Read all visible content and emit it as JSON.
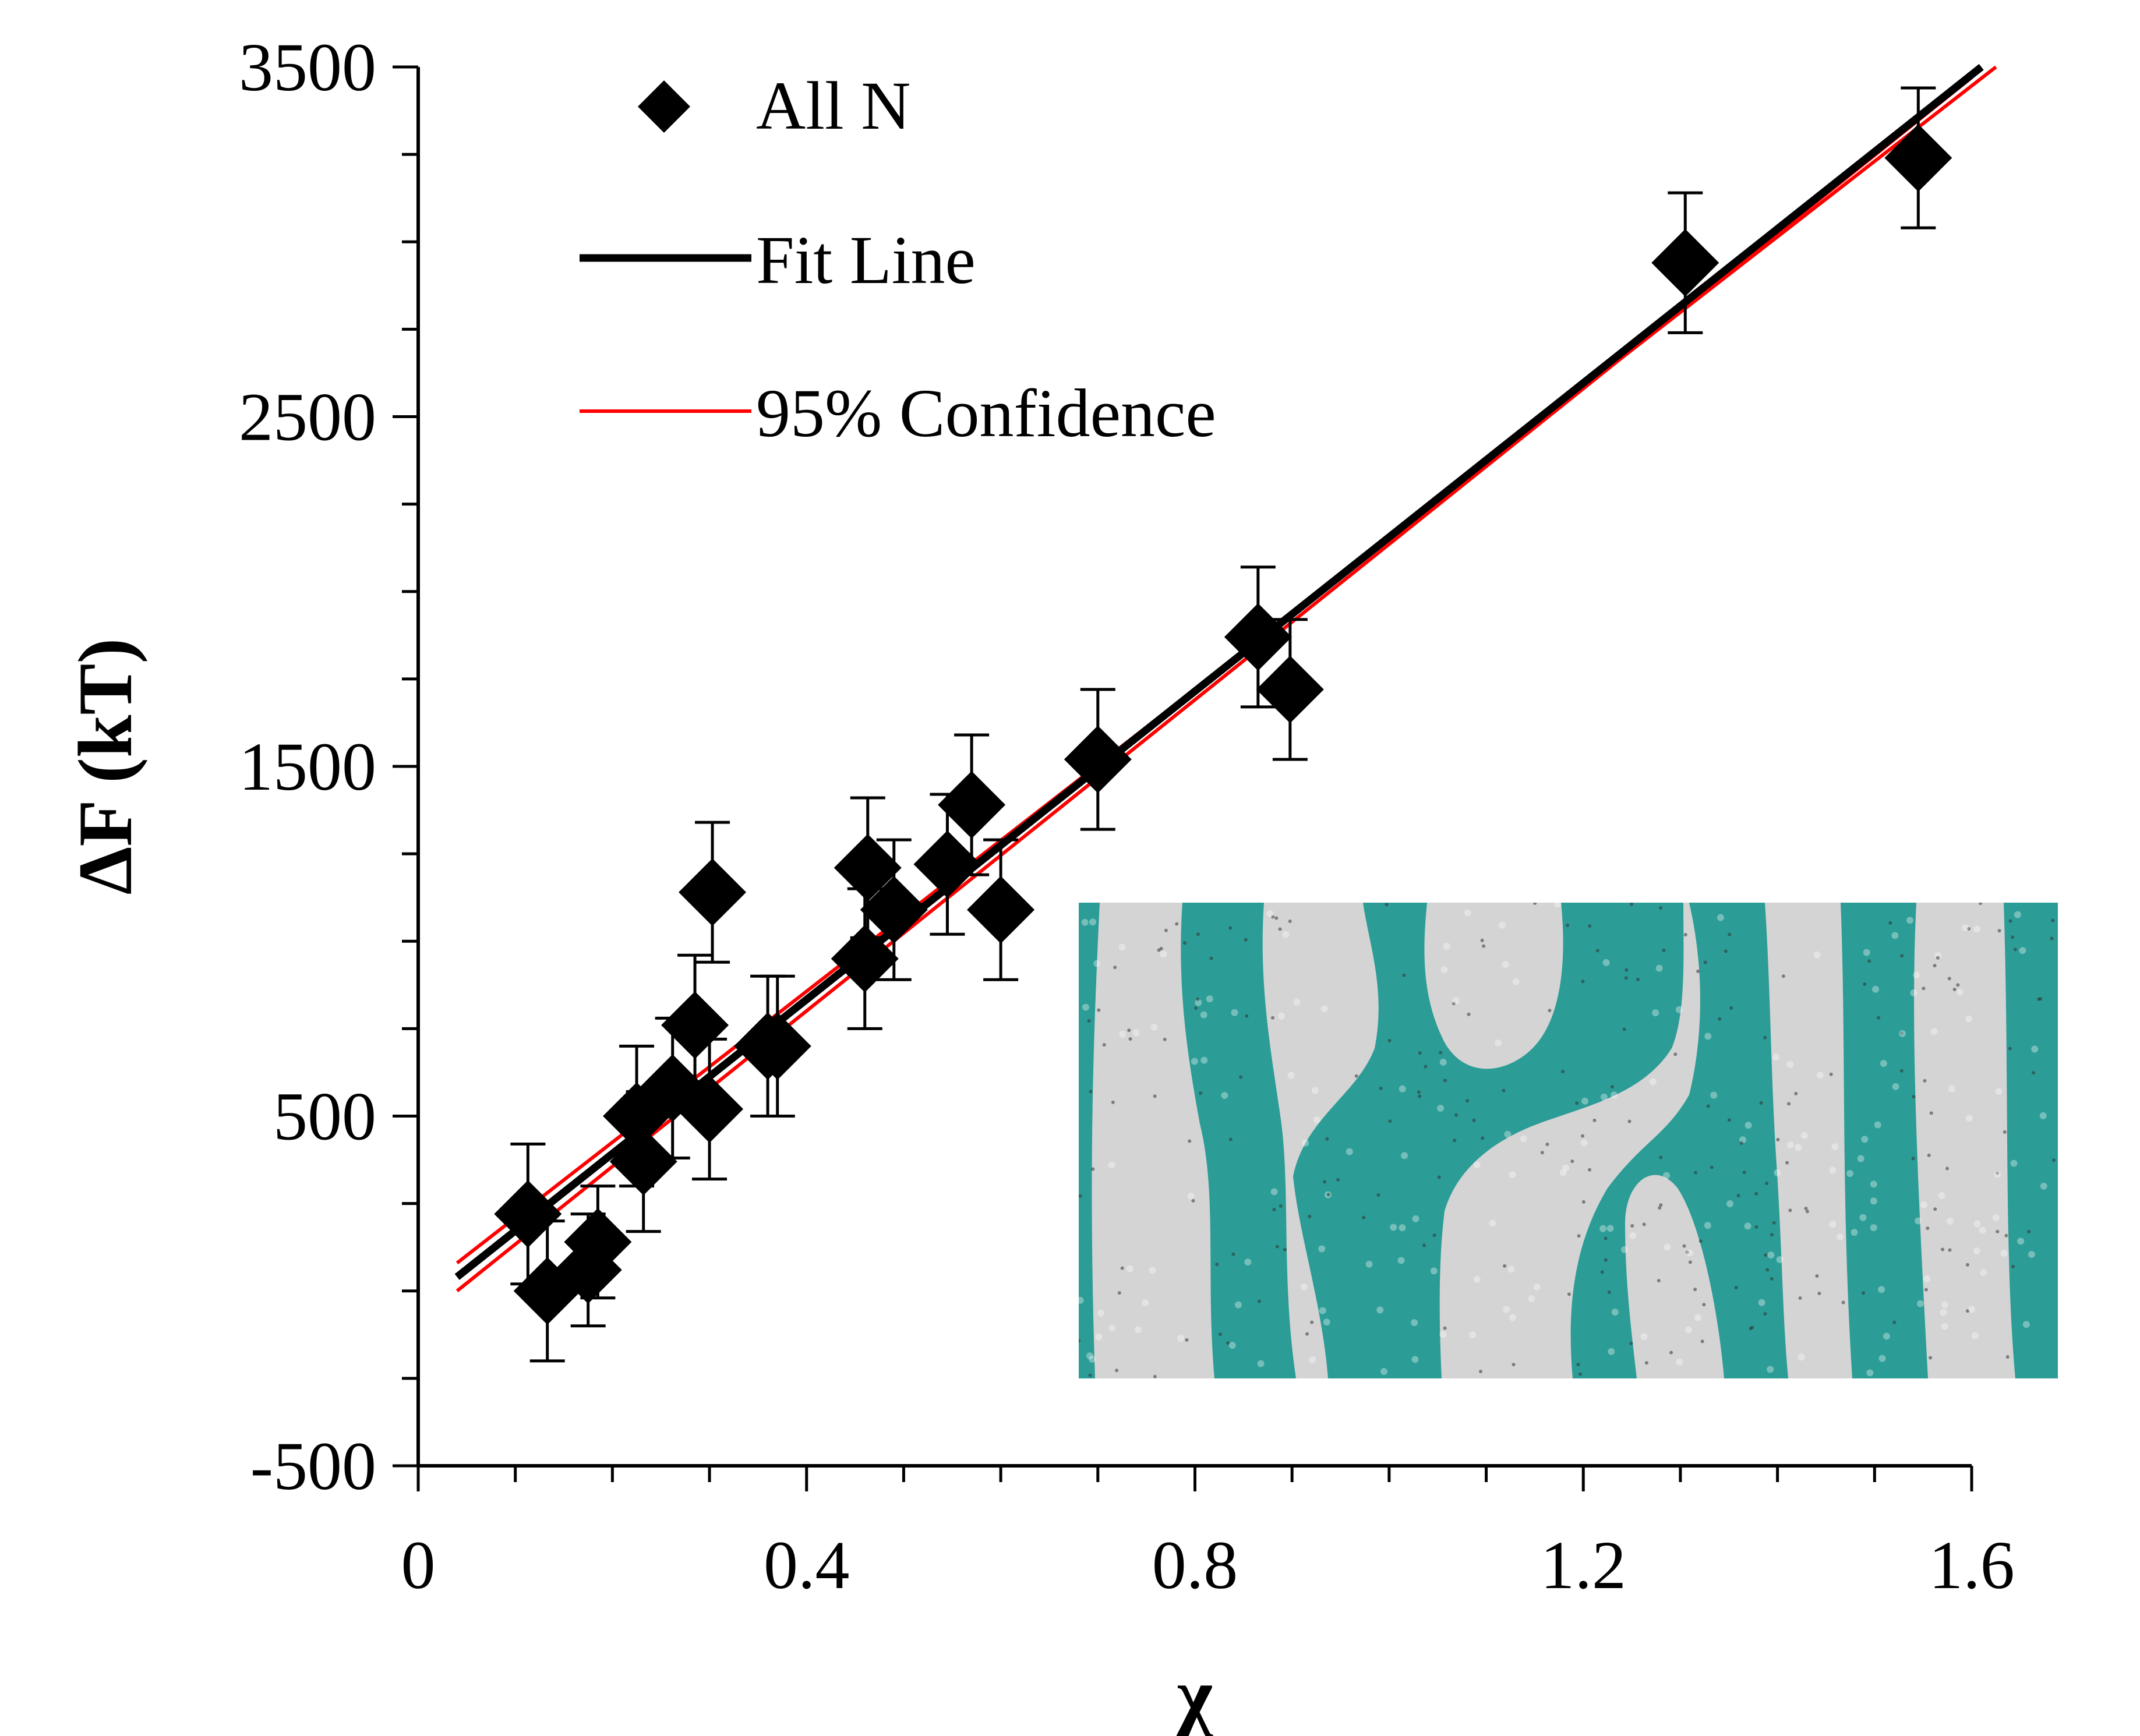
{
  "chart_data": {
    "type": "scatter",
    "xlabel": "χ",
    "ylabel": "ΔF (kT)",
    "xlim": [
      0,
      1.6
    ],
    "ylim": [
      -500,
      3500
    ],
    "x_ticks": [
      "0",
      "0.4",
      "0.8",
      "1.2",
      "1.6"
    ],
    "y_ticks": [
      "-500",
      "500",
      "1500",
      "2500",
      "3500"
    ],
    "grid": false,
    "legend": {
      "placement": "top-left",
      "entries": [
        "All N",
        "Fit Line",
        "95% Confidence"
      ]
    },
    "series": [
      {
        "name": "All N",
        "marker": "diamond",
        "color": "#000000",
        "points": [
          {
            "x": 0.113,
            "y": 220,
            "err": 200
          },
          {
            "x": 0.133,
            "y": 0,
            "err": 200
          },
          {
            "x": 0.175,
            "y": 60,
            "err": 160
          },
          {
            "x": 0.185,
            "y": 140,
            "err": 160
          },
          {
            "x": 0.225,
            "y": 500,
            "err": 200
          },
          {
            "x": 0.232,
            "y": 370,
            "err": 200
          },
          {
            "x": 0.262,
            "y": 580,
            "err": 200
          },
          {
            "x": 0.285,
            "y": 760,
            "err": 200
          },
          {
            "x": 0.3,
            "y": 520,
            "err": 200
          },
          {
            "x": 0.303,
            "y": 1140,
            "err": 200
          },
          {
            "x": 0.36,
            "y": 700,
            "err": 200
          },
          {
            "x": 0.37,
            "y": 700,
            "err": 200
          },
          {
            "x": 0.46,
            "y": 950,
            "err": 200
          },
          {
            "x": 0.463,
            "y": 1210,
            "err": 200
          },
          {
            "x": 0.49,
            "y": 1090,
            "err": 200
          },
          {
            "x": 0.545,
            "y": 1220,
            "err": 200
          },
          {
            "x": 0.57,
            "y": 1390,
            "err": 200
          },
          {
            "x": 0.6,
            "y": 1090,
            "err": 200
          },
          {
            "x": 0.7,
            "y": 1520,
            "err": 200
          },
          {
            "x": 0.865,
            "y": 1870,
            "err": 200
          },
          {
            "x": 0.898,
            "y": 1720,
            "err": 200
          },
          {
            "x": 1.305,
            "y": 2940,
            "err": 200
          },
          {
            "x": 1.545,
            "y": 3240,
            "err": 200
          }
        ]
      },
      {
        "name": "Fit Line",
        "type": "line",
        "color": "#000000",
        "x": [
          0.04,
          1.61
        ],
        "y": [
          40,
          3500
        ]
      },
      {
        "name": "95% Confidence",
        "type": "line",
        "color": "#ff0000",
        "lines": [
          {
            "x": [
              0.04,
              1.625
            ],
            "y": [
              80,
              3500
            ]
          },
          {
            "x": [
              0.04,
              1.6
            ],
            "y": [
              0,
              3470
            ]
          }
        ]
      }
    ],
    "inset": {
      "description_colors": {
        "teal": "#2b9c96",
        "light": "#d6d6d6"
      }
    }
  }
}
